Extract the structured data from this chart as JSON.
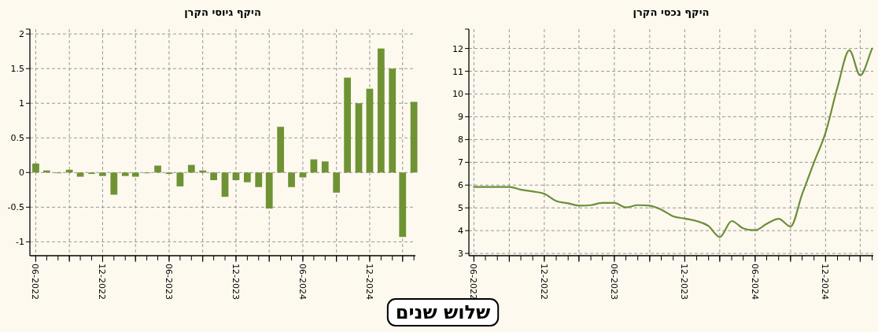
{
  "chart_data": [
    {
      "type": "line",
      "title": "היקף נכסי הקרן",
      "x": [
        "2022-06",
        "2022-07",
        "2022-08",
        "2022-09",
        "2022-10",
        "2022-11",
        "2022-12",
        "2023-01",
        "2023-02",
        "2023-03",
        "2023-04",
        "2023-05",
        "2023-06",
        "2023-07",
        "2023-08",
        "2023-09",
        "2023-10",
        "2023-11",
        "2023-12",
        "2024-01",
        "2024-02",
        "2024-03",
        "2024-04",
        "2024-05",
        "2024-06",
        "2024-07",
        "2024-08",
        "2024-09",
        "2024-10",
        "2024-11",
        "2024-12",
        "2025-01",
        "2025-02",
        "2025-03",
        "2025-04"
      ],
      "series": [
        {
          "color": "#6b8e3a",
          "values": [
            5.92,
            5.92,
            5.92,
            5.92,
            5.8,
            5.72,
            5.62,
            5.3,
            5.2,
            5.1,
            5.12,
            5.22,
            5.22,
            5.02,
            5.12,
            5.1,
            4.92,
            4.63,
            4.53,
            4.42,
            4.2,
            3.72,
            4.42,
            4.1,
            4.02,
            4.3,
            4.52,
            4.18,
            5.6,
            7.0,
            8.3,
            10.3,
            11.92,
            10.82,
            12.0
          ]
        }
      ],
      "xlim": [
        "2022-05-19",
        "2025-04-04"
      ],
      "xticks": [
        {
          "value": "2022-06",
          "label": "06-2022"
        },
        {
          "value": "2022-09",
          "label": null
        },
        {
          "value": "2022-12",
          "label": "12-2022"
        },
        {
          "value": "2023-03",
          "label": null
        },
        {
          "value": "2023-06",
          "label": "06-2023"
        },
        {
          "value": "2023-09",
          "label": null
        },
        {
          "value": "2023-12",
          "label": "12-2023"
        },
        {
          "value": "2024-03",
          "label": null
        },
        {
          "value": "2024-06",
          "label": "06-2024"
        },
        {
          "value": "2024-09",
          "label": null
        },
        {
          "value": "2024-12",
          "label": "12-2024"
        },
        {
          "value": "2025-03",
          "label": null
        }
      ],
      "ylim": [
        2.9,
        12.85
      ],
      "yticks": [
        3,
        4,
        5,
        6,
        7,
        8,
        9,
        10,
        11,
        12
      ],
      "grid": true,
      "marker": "none",
      "line_style": "solid"
    },
    {
      "type": "bar",
      "title": "היקף גיוסי הקרן",
      "x": [
        "2022-06",
        "2022-07",
        "2022-08",
        "2022-09",
        "2022-10",
        "2022-11",
        "2022-12",
        "2023-01",
        "2023-02",
        "2023-03",
        "2023-04",
        "2023-05",
        "2023-06",
        "2023-07",
        "2023-08",
        "2023-09",
        "2023-10",
        "2023-11",
        "2023-12",
        "2024-01",
        "2024-02",
        "2024-03",
        "2024-04",
        "2024-05",
        "2024-06",
        "2024-07",
        "2024-08",
        "2024-09",
        "2024-10",
        "2024-11",
        "2024-12",
        "2025-01",
        "2025-02",
        "2025-03",
        "2025-04"
      ],
      "series": [
        {
          "color": "#6f9334",
          "values": [
            0.13,
            0.03,
            -0.01,
            0.04,
            -0.06,
            -0.02,
            -0.05,
            -0.32,
            -0.05,
            -0.06,
            -0.01,
            0.1,
            -0.02,
            -0.2,
            0.11,
            0.03,
            -0.11,
            -0.35,
            -0.11,
            -0.14,
            -0.21,
            -0.52,
            0.66,
            -0.21,
            -0.07,
            0.19,
            0.16,
            -0.29,
            1.37,
            1.0,
            1.21,
            1.79,
            1.5,
            -0.93,
            1.02
          ]
        }
      ],
      "xlim": [
        "2022-05-16",
        "2025-04-05"
      ],
      "xticks": [
        {
          "value": "2022-06",
          "label": "06-2022"
        },
        {
          "value": "2022-09",
          "label": null
        },
        {
          "value": "2022-12",
          "label": "12-2022"
        },
        {
          "value": "2023-03",
          "label": null
        },
        {
          "value": "2023-06",
          "label": "06-2023"
        },
        {
          "value": "2023-09",
          "label": null
        },
        {
          "value": "2023-12",
          "label": "12-2023"
        },
        {
          "value": "2024-03",
          "label": null
        },
        {
          "value": "2024-06",
          "label": "06-2024"
        },
        {
          "value": "2024-09",
          "label": null
        },
        {
          "value": "2024-12",
          "label": "12-2024"
        },
        {
          "value": "2025-03",
          "label": null
        }
      ],
      "ylim": [
        -1.2,
        2.07
      ],
      "yticks": [
        -1,
        -0.5,
        0,
        0.5,
        1,
        1.5,
        2
      ],
      "grid": true,
      "annotations": [
        "שלוש שנים"
      ]
    }
  ]
}
